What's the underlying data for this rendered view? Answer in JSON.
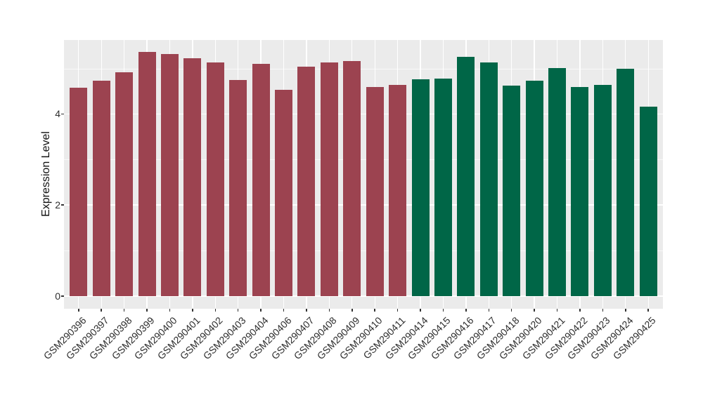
{
  "chart_data": {
    "type": "bar",
    "title": "",
    "xlabel": "",
    "ylabel": "Expression Level",
    "ylim": [
      0,
      5.62
    ],
    "yticks": [
      0,
      2,
      4
    ],
    "yticks_minor": [
      1,
      3,
      5
    ],
    "grid": true,
    "legend": false,
    "panel_background": "#EBEBEB",
    "grid_color": "#FFFFFF",
    "axis_text_color": "#2e2e2e",
    "tick_color": "#333333",
    "group_colors": {
      "group1": "#9C4350",
      "group2": "#006647"
    },
    "categories": [
      "GSM290396",
      "GSM290397",
      "GSM290398",
      "GSM290399",
      "GSM290400",
      "GSM290401",
      "GSM290402",
      "GSM290403",
      "GSM290404",
      "GSM290406",
      "GSM290407",
      "GSM290408",
      "GSM290409",
      "GSM290410",
      "GSM290411",
      "GSM290414",
      "GSM290415",
      "GSM290416",
      "GSM290417",
      "GSM290418",
      "GSM290420",
      "GSM290421",
      "GSM290422",
      "GSM290423",
      "GSM290424",
      "GSM290425"
    ],
    "values": [
      4.57,
      4.73,
      4.92,
      5.36,
      5.32,
      5.22,
      5.13,
      4.75,
      5.1,
      4.53,
      5.04,
      5.13,
      5.16,
      4.59,
      4.64,
      4.76,
      4.78,
      5.25,
      5.13,
      4.62,
      4.73,
      5.01,
      4.59,
      4.64,
      4.99,
      4.16
    ],
    "bar_colors": [
      "#9C4350",
      "#9C4350",
      "#9C4350",
      "#9C4350",
      "#9C4350",
      "#9C4350",
      "#9C4350",
      "#9C4350",
      "#9C4350",
      "#9C4350",
      "#9C4350",
      "#9C4350",
      "#9C4350",
      "#9C4350",
      "#9C4350",
      "#006647",
      "#006647",
      "#006647",
      "#006647",
      "#006647",
      "#006647",
      "#006647",
      "#006647",
      "#006647",
      "#006647",
      "#006647"
    ]
  }
}
